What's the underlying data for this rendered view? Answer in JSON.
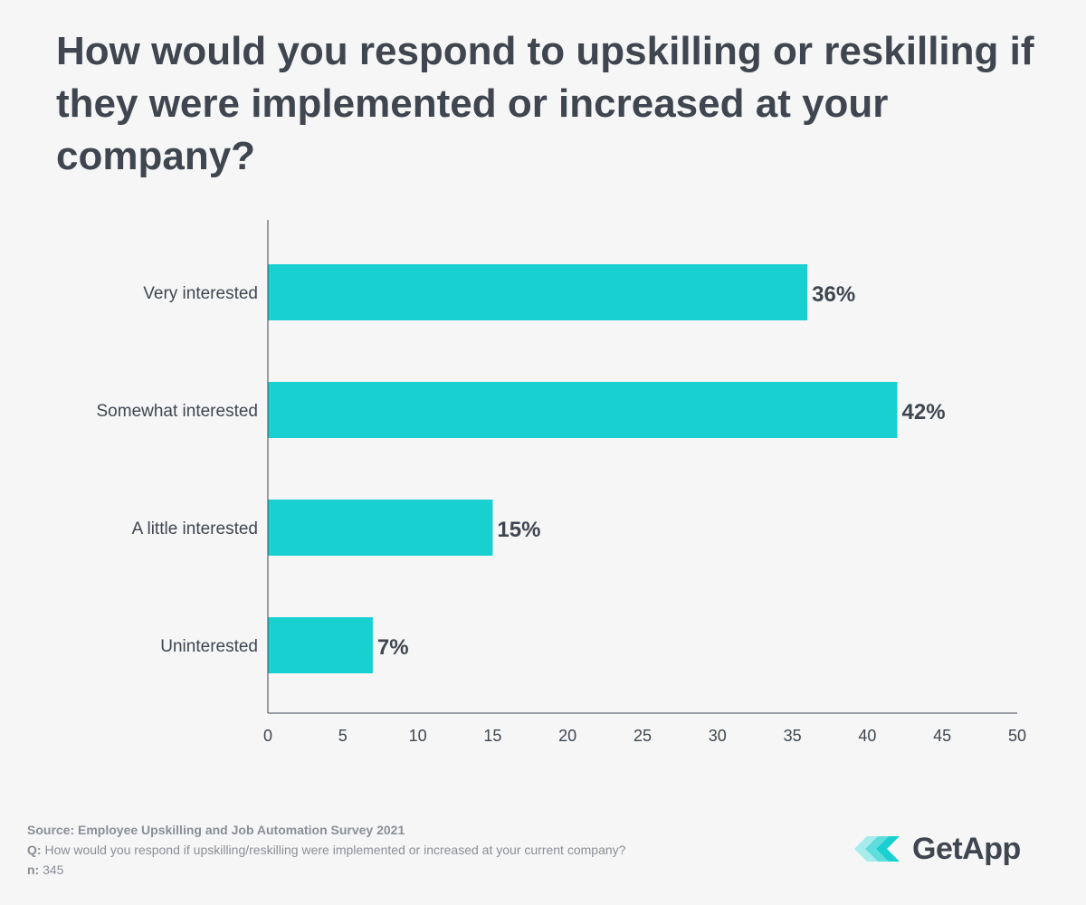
{
  "chart_data": {
    "type": "bar",
    "orientation": "horizontal",
    "title": "How would you respond to upskilling or reskilling if they were implemented or increased at your company?",
    "categories": [
      "Very interested",
      "Somewhat interested",
      "A little interested",
      "Uninterested"
    ],
    "values": [
      36,
      42,
      15,
      7
    ],
    "value_labels": [
      "36%",
      "42%",
      "15%",
      "7%"
    ],
    "xlim": [
      0,
      50
    ],
    "xticks": [
      0,
      5,
      10,
      15,
      20,
      25,
      30,
      35,
      40,
      45,
      50
    ],
    "grid": false,
    "bar_color": "#19d0d0"
  },
  "footer": {
    "source": "Source: Employee Upskilling and Job Automation Survey 2021",
    "question_prefix": "Q:",
    "question": " How would you respond if upskilling/reskilling were implemented or increased at your current company?",
    "n_prefix": "n:",
    "n": " 345"
  },
  "brand": {
    "name": "GetApp",
    "logo_icon": "getapp-chevrons-icon",
    "colors": [
      "#19d0d0",
      "#7fe3e3"
    ]
  }
}
